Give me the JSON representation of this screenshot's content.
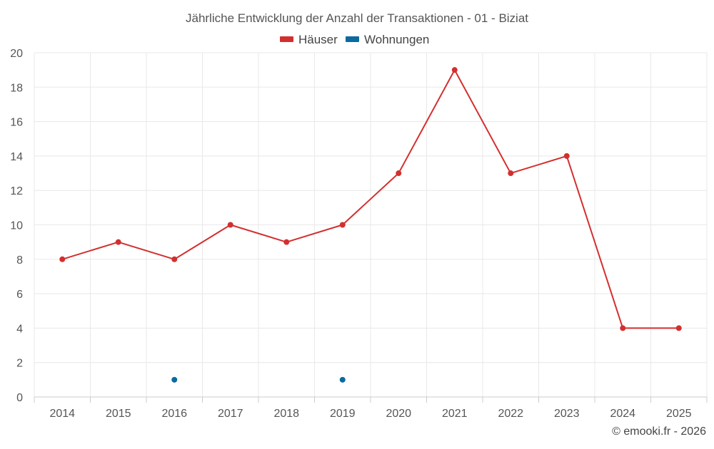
{
  "chart_data": {
    "type": "line",
    "title": "Jährliche Entwicklung der Anzahl der Transaktionen - 01 - Biziat",
    "categories": [
      "2014",
      "2015",
      "2016",
      "2017",
      "2018",
      "2019",
      "2020",
      "2021",
      "2022",
      "2023",
      "2024",
      "2025"
    ],
    "series": [
      {
        "name": "Häuser",
        "color": "#d32f2f",
        "values": [
          8,
          9,
          8,
          10,
          9,
          10,
          13,
          19,
          13,
          14,
          4,
          4
        ]
      },
      {
        "name": "Wohnungen",
        "color": "#0a6aa1",
        "values": [
          null,
          null,
          1,
          null,
          null,
          1,
          null,
          null,
          null,
          null,
          null,
          null
        ]
      }
    ],
    "ylim": [
      0,
      20
    ],
    "yticks": [
      "0",
      "2",
      "4",
      "6",
      "8",
      "10",
      "12",
      "14",
      "16",
      "18",
      "20"
    ],
    "grid": true,
    "legend_position": "top-center",
    "xlabel": "",
    "ylabel": ""
  },
  "credit": "© emooki.fr - 2026"
}
